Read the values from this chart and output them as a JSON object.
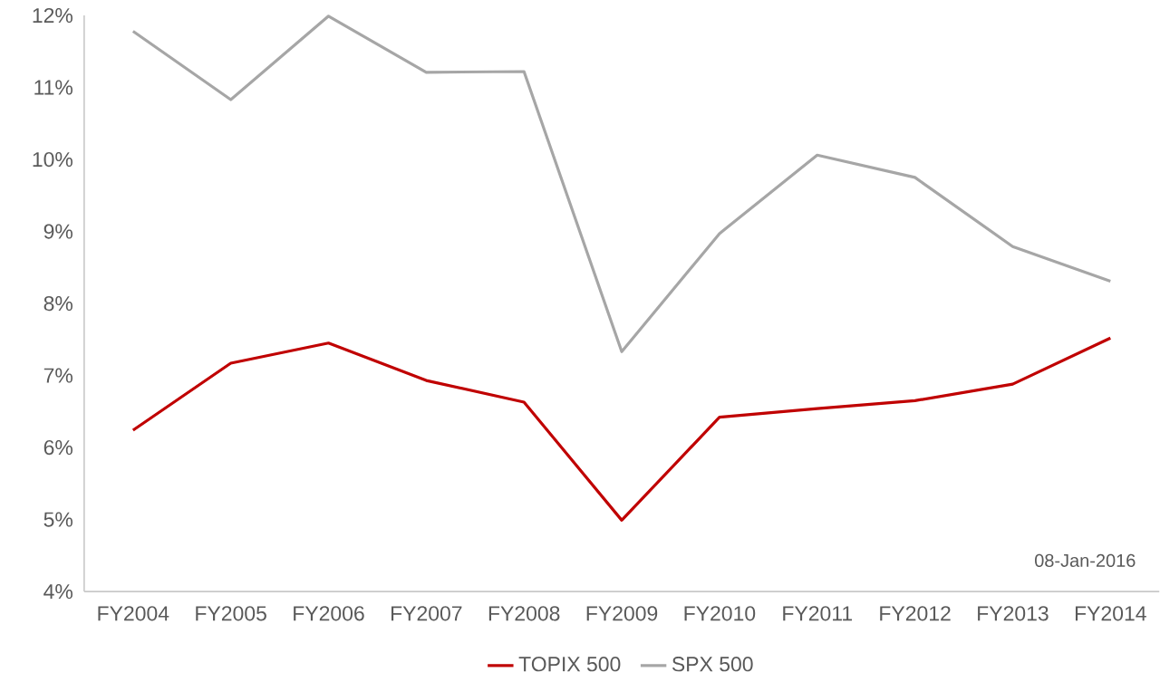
{
  "chart_data": {
    "type": "line",
    "categories": [
      "FY2004",
      "FY2005",
      "FY2006",
      "FY2007",
      "FY2008",
      "FY2009",
      "FY2010",
      "FY2011",
      "FY2012",
      "FY2013",
      "FY2014"
    ],
    "series": [
      {
        "name": "TOPIX 500",
        "color": "#c00000",
        "values": [
          6.24,
          7.17,
          7.45,
          6.93,
          6.63,
          4.99,
          6.42,
          6.54,
          6.65,
          6.88,
          7.52
        ]
      },
      {
        "name": "SPX 500",
        "color": "#a6a6a6",
        "values": [
          11.78,
          10.83,
          11.99,
          11.21,
          11.22,
          7.33,
          8.97,
          10.06,
          9.75,
          8.79,
          8.31
        ]
      }
    ],
    "ylim": [
      4,
      12
    ],
    "yticks": [
      {
        "value": 4,
        "label": "4%"
      },
      {
        "value": 5,
        "label": "5%"
      },
      {
        "value": 6,
        "label": "6%"
      },
      {
        "value": 7,
        "label": "7%"
      },
      {
        "value": 8,
        "label": "8%"
      },
      {
        "value": 9,
        "label": "9%"
      },
      {
        "value": 10,
        "label": "10%"
      },
      {
        "value": 11,
        "label": "11%"
      },
      {
        "value": 12,
        "label": "12%"
      }
    ],
    "annotations": [
      "08-Jan-2016"
    ],
    "legend": "bottom",
    "grid": false,
    "marker": "none",
    "line_style": "solid"
  }
}
